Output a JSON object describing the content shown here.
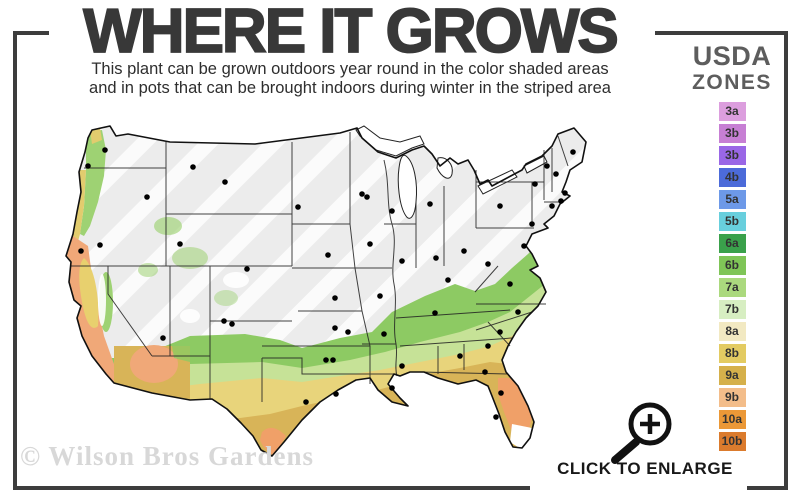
{
  "header": {
    "title": "WHERE IT GROWS",
    "subtitle_line1": "This plant can be grown outdoors year round in the color shaded areas",
    "subtitle_line2": "and in pots that can be brought indoors during winter in the striped area"
  },
  "legend": {
    "title_line1": "USDA",
    "title_line2": "ZONES",
    "zones": [
      {
        "label": "3a",
        "color": "#dc9ede"
      },
      {
        "label": "3b",
        "color": "#c77fd4"
      },
      {
        "label": "3b",
        "color": "#9a67e6"
      },
      {
        "label": "4b",
        "color": "#4c6bd9"
      },
      {
        "label": "5a",
        "color": "#6d99e8"
      },
      {
        "label": "5b",
        "color": "#68cfdd"
      },
      {
        "label": "6a",
        "color": "#3aa14b"
      },
      {
        "label": "6b",
        "color": "#7fc557"
      },
      {
        "label": "7a",
        "color": "#abd97e"
      },
      {
        "label": "7b",
        "color": "#d7eec2"
      },
      {
        "label": "8a",
        "color": "#f2e9c2"
      },
      {
        "label": "8b",
        "color": "#e3cb62"
      },
      {
        "label": "9a",
        "color": "#d5b04b"
      },
      {
        "label": "9b",
        "color": "#f3bd8a"
      },
      {
        "label": "10a",
        "color": "#eb9837"
      },
      {
        "label": "10b",
        "color": "#db7b2d"
      }
    ]
  },
  "map": {
    "base_color": "#ececec",
    "stripe_color": "#fbfbfb",
    "outline_color": "#111111",
    "dot_color": "#000000"
  },
  "footer": {
    "watermark": "© Wilson Bros Gardens",
    "enlarge_label": "CLICK TO ENLARGE"
  }
}
